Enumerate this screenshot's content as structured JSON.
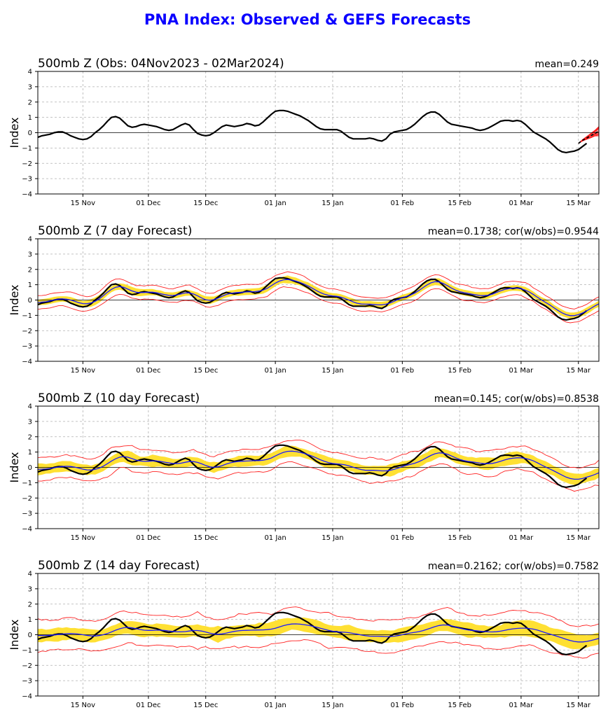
{
  "title": "PNA Index: Observed & GEFS Forecasts",
  "colors": {
    "title": "#0b00ff",
    "observed": "#000000",
    "ensemble_mean": "#1a1aff",
    "ensemble_members": "#ff2020",
    "spread": "#ffe033",
    "grid": "#b0b0b0"
  },
  "chart_data": [
    {
      "type": "line",
      "panel": "observed",
      "title": "500mb Z (Obs: 04Nov2023 - 02Mar2024)",
      "stat": "mean=0.249",
      "ylabel": "Index",
      "ylim": [
        -4,
        4
      ],
      "yticks": [
        "4",
        "3",
        "2",
        "1",
        "0",
        "−1",
        "−2",
        "−3",
        "−4"
      ],
      "xlim": [
        0,
        137
      ],
      "xticks": [
        {
          "day": 11,
          "label": "15 Nov"
        },
        {
          "day": 27,
          "label": "01 Dec"
        },
        {
          "day": 41,
          "label": "15 Dec"
        },
        {
          "day": 58,
          "label": "01 Jan"
        },
        {
          "day": 72,
          "label": "15 Jan"
        },
        {
          "day": 89,
          "label": "01 Feb"
        },
        {
          "day": 103,
          "label": "15 Feb"
        },
        {
          "day": 118,
          "label": "01 Mar"
        },
        {
          "day": 132,
          "label": "15 Mar"
        }
      ],
      "grid": true,
      "series": [
        {
          "name": "Observed",
          "x_start": 0,
          "values": [
            -0.3,
            -0.2,
            -0.15,
            -0.1,
            0.0,
            0.05,
            0.05,
            -0.05,
            -0.2,
            -0.3,
            -0.4,
            -0.45,
            -0.4,
            -0.25,
            0.0,
            0.2,
            0.45,
            0.75,
            1.0,
            1.05,
            0.95,
            0.7,
            0.45,
            0.35,
            0.4,
            0.5,
            0.55,
            0.5,
            0.45,
            0.4,
            0.3,
            0.2,
            0.15,
            0.2,
            0.35,
            0.5,
            0.6,
            0.5,
            0.2,
            -0.05,
            -0.15,
            -0.2,
            -0.15,
            0.0,
            0.2,
            0.4,
            0.5,
            0.45,
            0.4,
            0.45,
            0.5,
            0.6,
            0.55,
            0.45,
            0.5,
            0.7,
            0.95,
            1.2,
            1.4,
            1.45,
            1.45,
            1.4,
            1.3,
            1.2,
            1.1,
            0.95,
            0.8,
            0.6,
            0.4,
            0.25,
            0.2,
            0.2,
            0.2,
            0.2,
            0.1,
            -0.1,
            -0.3,
            -0.4,
            -0.4,
            -0.4,
            -0.4,
            -0.35,
            -0.4,
            -0.5,
            -0.55,
            -0.4,
            -0.1,
            0.05,
            0.1,
            0.15,
            0.2,
            0.35,
            0.55,
            0.8,
            1.05,
            1.25,
            1.35,
            1.35,
            1.2,
            0.95,
            0.7,
            0.55,
            0.5,
            0.45,
            0.4,
            0.35,
            0.3,
            0.2,
            0.15,
            0.2,
            0.3,
            0.45,
            0.6,
            0.75,
            0.8,
            0.8,
            0.75,
            0.8,
            0.75,
            0.55,
            0.3,
            0.05,
            -0.1,
            -0.25,
            -0.4,
            -0.6,
            -0.85,
            -1.1,
            -1.25,
            -1.3,
            -1.25,
            -1.2,
            -1.1,
            -0.9,
            -0.7
          ]
        },
        {
          "name": "GEFS members",
          "type": "band_members",
          "x_start": 132,
          "mean": [
            -0.7,
            -0.5,
            -0.35,
            -0.2,
            -0.05,
            0.1,
            0.2,
            0.25,
            0.3,
            0.25,
            0.2,
            0.15
          ],
          "spread": [
            0.0,
            0.05,
            0.1,
            0.15,
            0.2,
            0.3,
            0.4,
            0.5,
            0.55,
            0.6,
            0.65,
            0.7
          ]
        }
      ]
    },
    {
      "type": "line",
      "panel": "forecast",
      "title": "500mb Z (7 day Forecast)",
      "stat": "mean=0.1738; cor(w/obs)=0.9544",
      "ylabel": "Index",
      "ylim": [
        -4,
        4
      ],
      "yticks": [
        "4",
        "3",
        "2",
        "1",
        "0",
        "−1",
        "−2",
        "−3",
        "−4"
      ],
      "xlim": [
        0,
        137
      ],
      "xticks": [
        {
          "day": 11,
          "label": "15 Nov"
        },
        {
          "day": 27,
          "label": "01 Dec"
        },
        {
          "day": 41,
          "label": "15 Dec"
        },
        {
          "day": 58,
          "label": "01 Jan"
        },
        {
          "day": 72,
          "label": "15 Jan"
        },
        {
          "day": 89,
          "label": "01 Feb"
        },
        {
          "day": 103,
          "label": "15 Feb"
        },
        {
          "day": 118,
          "label": "01 Mar"
        },
        {
          "day": 132,
          "label": "15 Mar"
        }
      ],
      "grid": true,
      "forecast_end": 139,
      "shift": 1,
      "smooth": 0.9,
      "spread_half": 0.25,
      "outer_half": 0.5,
      "tail": [
        -0.5,
        -0.3,
        -0.2,
        -0.1,
        0.0,
        0.05,
        0.05
      ],
      "series_names": [
        "Observed",
        "Ensemble mean",
        "Spread",
        "Extremes"
      ]
    },
    {
      "type": "line",
      "panel": "forecast",
      "title": "500mb Z (10 day Forecast)",
      "stat": "mean=0.145; cor(w/obs)=0.8538",
      "ylabel": "Index",
      "ylim": [
        -4,
        4
      ],
      "yticks": [
        "4",
        "3",
        "2",
        "1",
        "0",
        "−1",
        "−2",
        "−3",
        "−4"
      ],
      "xlim": [
        0,
        137
      ],
      "xticks": [
        {
          "day": 11,
          "label": "15 Nov"
        },
        {
          "day": 27,
          "label": "01 Dec"
        },
        {
          "day": 41,
          "label": "15 Dec"
        },
        {
          "day": 58,
          "label": "01 Jan"
        },
        {
          "day": 72,
          "label": "15 Jan"
        },
        {
          "day": 89,
          "label": "01 Feb"
        },
        {
          "day": 103,
          "label": "15 Feb"
        },
        {
          "day": 118,
          "label": "01 Mar"
        },
        {
          "day": 132,
          "label": "15 Mar"
        }
      ],
      "grid": true,
      "forecast_end": 142,
      "shift": 2,
      "smooth": 0.7,
      "spread_half": 0.4,
      "outer_half": 0.8,
      "tail": [
        -0.7,
        -0.5,
        -0.3,
        -0.2,
        -0.1,
        0.0,
        0.1,
        0.2,
        0.25,
        0.3
      ],
      "series_names": [
        "Observed",
        "Ensemble mean",
        "Spread",
        "Extremes"
      ]
    },
    {
      "type": "line",
      "panel": "forecast",
      "title": "500mb Z (14 day Forecast)",
      "stat": "mean=0.2162; cor(w/obs)=0.7582",
      "ylabel": "Index",
      "ylim": [
        -4,
        4
      ],
      "yticks": [
        "4",
        "3",
        "2",
        "1",
        "0",
        "−1",
        "−2",
        "−3",
        "−4"
      ],
      "xlim": [
        0,
        137
      ],
      "xticks": [
        {
          "day": 11,
          "label": "15 Nov"
        },
        {
          "day": 27,
          "label": "01 Dec"
        },
        {
          "day": 41,
          "label": "15 Dec"
        },
        {
          "day": 58,
          "label": "01 Jan"
        },
        {
          "day": 72,
          "label": "15 Jan"
        },
        {
          "day": 89,
          "label": "01 Feb"
        },
        {
          "day": 103,
          "label": "15 Feb"
        },
        {
          "day": 118,
          "label": "01 Mar"
        },
        {
          "day": 132,
          "label": "15 Mar"
        }
      ],
      "grid": true,
      "forecast_end": 146,
      "shift": 3,
      "smooth": 0.45,
      "spread_half": 0.5,
      "outer_half": 1.1,
      "tail": [
        -0.5,
        -0.4,
        -0.3,
        -0.2,
        -0.1,
        0.0,
        0.1,
        0.2,
        0.3,
        0.35,
        0.4,
        0.4,
        0.4,
        0.35
      ],
      "series_names": [
        "Observed",
        "Ensemble mean",
        "Spread",
        "Extremes"
      ]
    }
  ]
}
